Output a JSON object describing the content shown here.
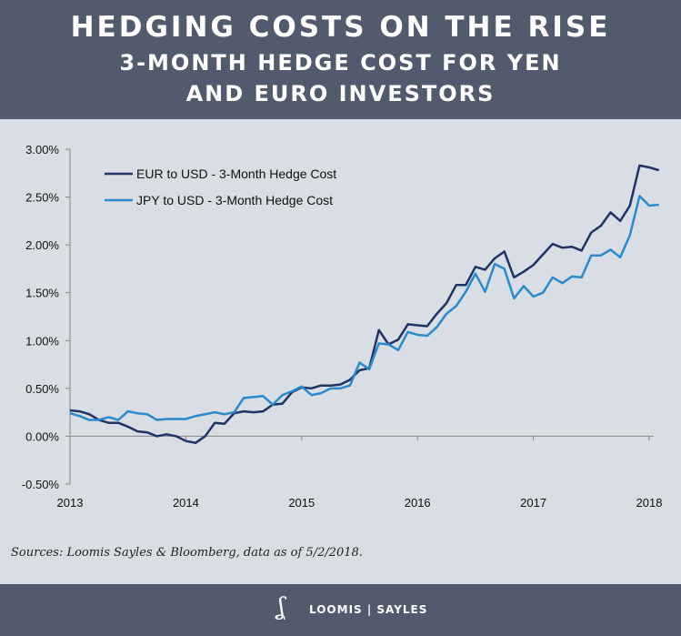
{
  "header": {
    "title": "HEDGING COSTS ON THE RISE",
    "subtitle_line1": "3-MONTH HEDGE COST FOR YEN",
    "subtitle_line2": "AND EURO INVESTORS"
  },
  "chart_data": {
    "type": "line",
    "x_tick_labels": [
      "2013",
      "2014",
      "2015",
      "2016",
      "2017",
      "2018"
    ],
    "y_tick_labels": [
      "3.00%",
      "2.50%",
      "2.00%",
      "1.50%",
      "1.00%",
      "0.50%",
      "0.00%",
      "-0.50%"
    ],
    "ylim": [
      -0.5,
      3.0
    ],
    "y_unit": "%",
    "grid": false,
    "legend_position": "top-left",
    "x_start": "2013-01",
    "x_end": "2018-02",
    "x_frequency": "monthly",
    "series": [
      {
        "name": "EUR to USD - 3-Month Hedge Cost",
        "color": "#1f3464",
        "values": [
          0.27,
          0.26,
          0.23,
          0.17,
          0.14,
          0.14,
          0.1,
          0.05,
          0.04,
          0.0,
          0.02,
          0.0,
          -0.05,
          -0.07,
          0.0,
          0.14,
          0.13,
          0.24,
          0.26,
          0.25,
          0.26,
          0.33,
          0.34,
          0.46,
          0.51,
          0.5,
          0.53,
          0.53,
          0.54,
          0.59,
          0.69,
          0.71,
          1.11,
          0.96,
          1.01,
          1.17,
          1.16,
          1.15,
          1.28,
          1.39,
          1.58,
          1.58,
          1.77,
          1.74,
          1.86,
          1.93,
          1.66,
          1.72,
          1.79,
          1.9,
          2.01,
          1.97,
          1.98,
          1.94,
          2.13,
          2.2,
          2.34,
          2.25,
          2.41,
          2.83,
          2.81,
          2.78
        ]
      },
      {
        "name": "JPY to USD - 3-Month Hedge Cost",
        "color": "#2b8acb",
        "values": [
          0.24,
          0.21,
          0.17,
          0.17,
          0.2,
          0.17,
          0.26,
          0.24,
          0.23,
          0.17,
          0.18,
          0.18,
          0.18,
          0.21,
          0.23,
          0.25,
          0.23,
          0.25,
          0.4,
          0.41,
          0.42,
          0.33,
          0.43,
          0.47,
          0.52,
          0.43,
          0.45,
          0.5,
          0.5,
          0.53,
          0.77,
          0.7,
          0.97,
          0.96,
          0.9,
          1.09,
          1.06,
          1.05,
          1.14,
          1.28,
          1.36,
          1.51,
          1.7,
          1.51,
          1.8,
          1.75,
          1.44,
          1.57,
          1.46,
          1.5,
          1.66,
          1.6,
          1.67,
          1.66,
          1.89,
          1.89,
          1.95,
          1.87,
          2.1,
          2.51,
          2.41,
          2.42
        ]
      }
    ]
  },
  "source": "Sources: Loomis Sayles & Bloomberg, data as of 5/2/2018.",
  "footer": {
    "logo_mark": "LS",
    "brand": "LOOMIS | SAYLES"
  }
}
